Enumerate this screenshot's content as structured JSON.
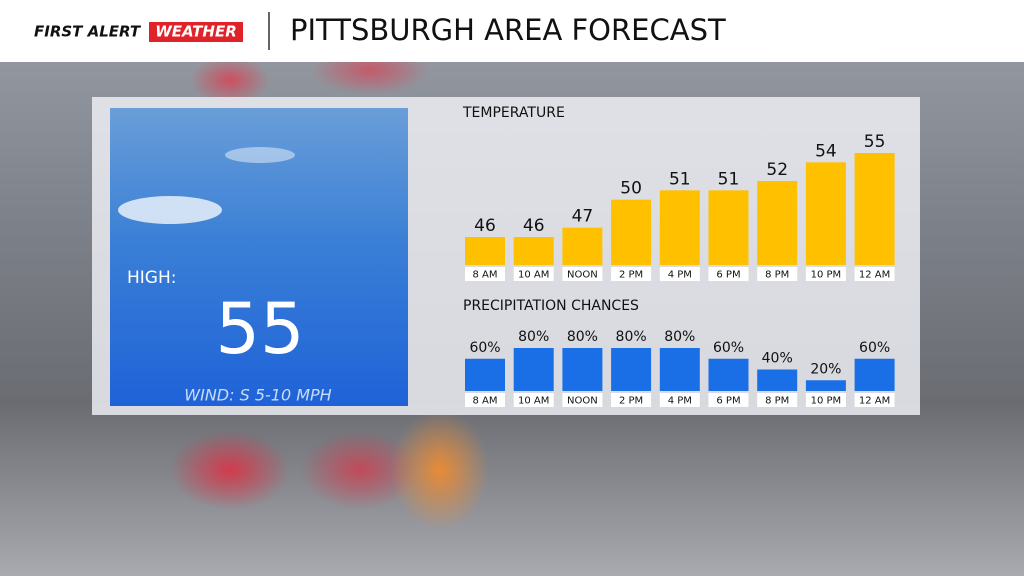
{
  "header": {
    "logo_first": "FIRST ALERT",
    "logo_second": "WEATHER",
    "title": "PITTSBURGH AREA FORECAST"
  },
  "card": {
    "high_label": "HIGH:",
    "high": 55,
    "wind": "WIND: S 5-10 MPH"
  },
  "chart_data": [
    {
      "type": "bar",
      "title": "TEMPERATURE",
      "categories": [
        "8 AM",
        "10 AM",
        "NOON",
        "2 PM",
        "4 PM",
        "6 PM",
        "8 PM",
        "10 PM",
        "12 AM"
      ],
      "values": [
        46,
        46,
        47,
        50,
        51,
        51,
        52,
        54,
        55
      ],
      "color": "#ffc000",
      "ylim": [
        43,
        55
      ]
    },
    {
      "type": "bar",
      "title": "PRECIPITATION CHANCES",
      "categories": [
        "8 AM",
        "10 AM",
        "NOON",
        "2 PM",
        "4 PM",
        "6 PM",
        "8 PM",
        "10 PM",
        "12 AM"
      ],
      "values": [
        60,
        80,
        80,
        80,
        80,
        60,
        40,
        20,
        60
      ],
      "value_labels": [
        "60%",
        "80%",
        "80%",
        "80%",
        "80%",
        "60%",
        "40%",
        "20%",
        "60%"
      ],
      "color": "#1a6fe6",
      "ylim": [
        0,
        80
      ]
    }
  ]
}
